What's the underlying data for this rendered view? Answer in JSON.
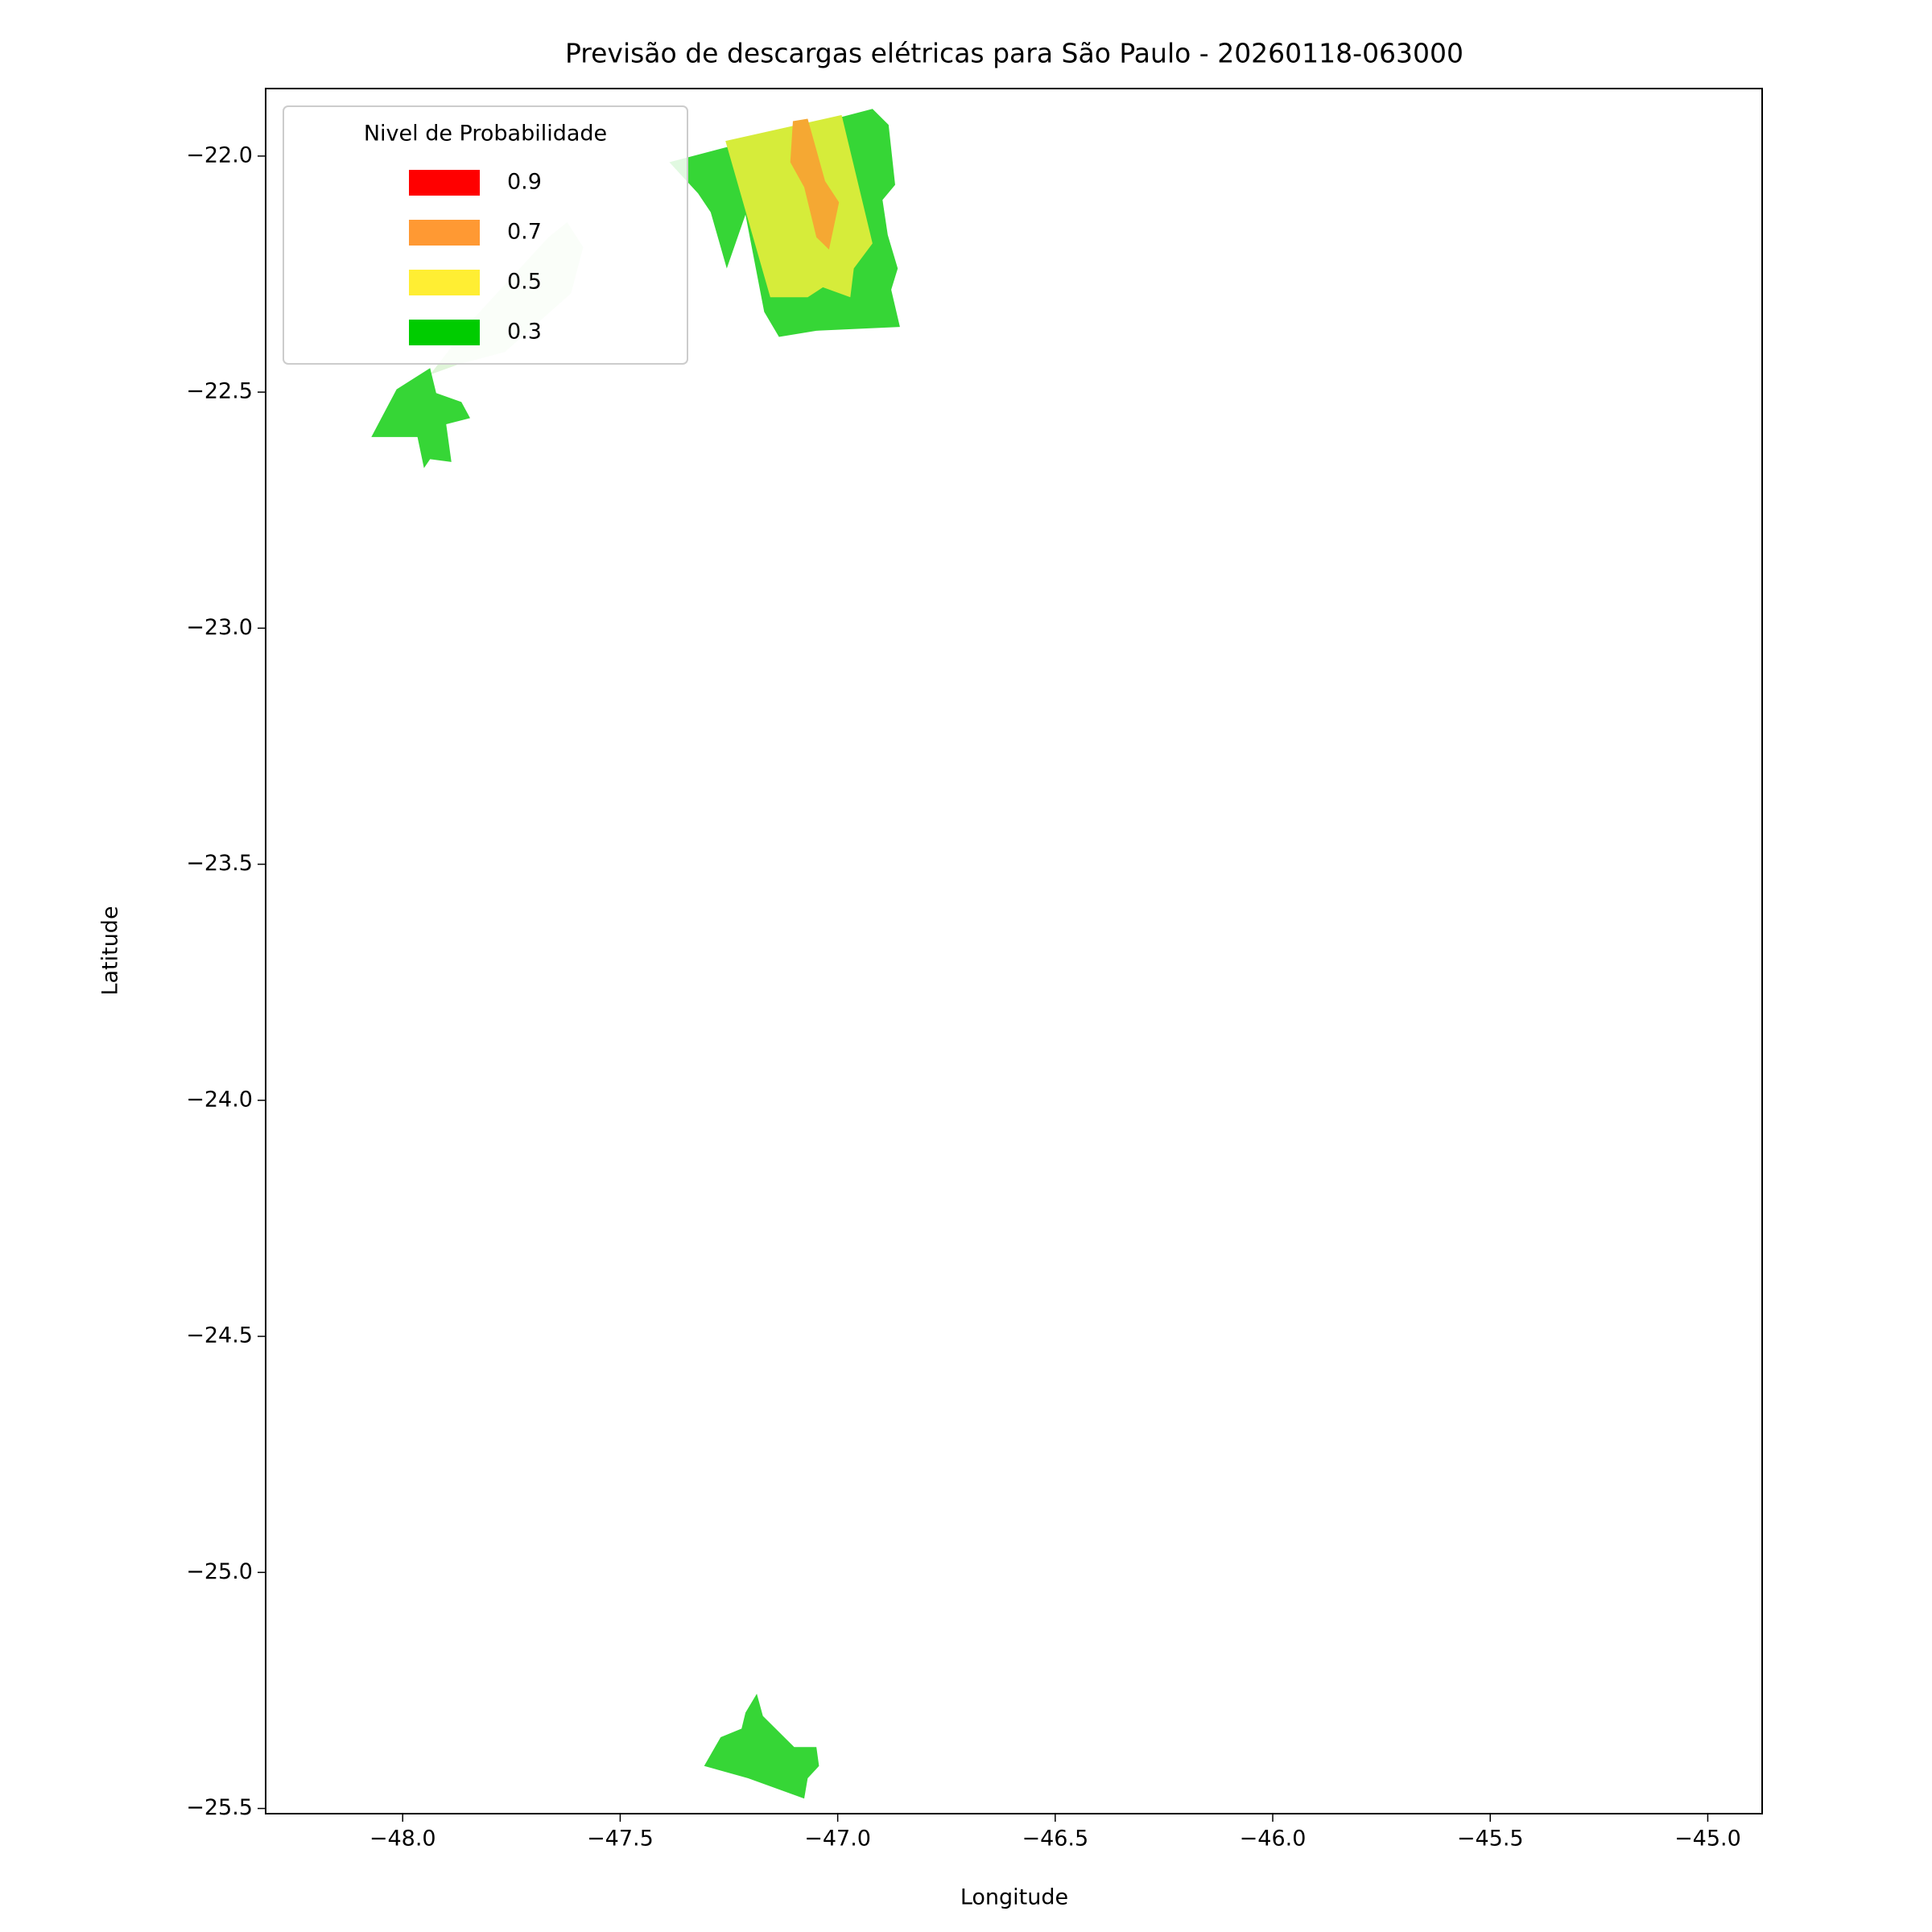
{
  "chart_data": {
    "type": "contour",
    "title": "Previsão de descargas elétricas para São Paulo - 20260118-063000",
    "x_label": "Longitude",
    "y_label": "Latitude",
    "legend_title": "Nivel de Probabilidade",
    "legend_position": "upper left",
    "series": [
      {
        "name": "0.9",
        "color": "#ff0000"
      },
      {
        "name": "0.7",
        "color": "#ff9933"
      },
      {
        "name": "0.5",
        "color": "#ffee33"
      },
      {
        "name": "0.3",
        "color": "#00cc00"
      }
    ],
    "regions": [
      {
        "color": "#dff5d8",
        "x": [
          -47.622,
          -47.585,
          -47.613,
          -47.765,
          -47.871,
          -47.937,
          -47.837,
          -47.665
        ],
        "y": [
          -22.14,
          -22.193,
          -22.291,
          -22.415,
          -22.441,
          -22.463,
          -22.344,
          -22.172
        ]
      },
      {
        "color": "#36d636",
        "x": [
          -47.387,
          -46.92,
          -46.883,
          -46.868,
          -46.897,
          -46.885,
          -46.862,
          -46.877,
          -46.857,
          -47.049,
          -47.135,
          -47.169,
          -47.212,
          -47.255,
          -47.292,
          -47.321
        ],
        "y": [
          -22.013,
          -21.9,
          -21.934,
          -22.061,
          -22.093,
          -22.167,
          -22.238,
          -22.283,
          -22.362,
          -22.37,
          -22.383,
          -22.33,
          -22.124,
          -22.238,
          -22.119,
          -22.079
        ]
      },
      {
        "color": "#d6ec3a",
        "x": [
          -47.258,
          -46.991,
          -46.92,
          -46.963,
          -46.971,
          -47.034,
          -47.069,
          -47.155
        ],
        "y": [
          -21.968,
          -21.913,
          -22.185,
          -22.238,
          -22.299,
          -22.278,
          -22.299,
          -22.299
        ]
      },
      {
        "color": "#f5a833",
        "x": [
          -47.103,
          -47.069,
          -47.029,
          -46.997,
          -47.02,
          -47.049,
          -47.077,
          -47.109
        ],
        "y": [
          -21.926,
          -21.921,
          -22.053,
          -22.098,
          -22.198,
          -22.172,
          -22.066,
          -22.013
        ]
      },
      {
        "color": "#36d636",
        "x": [
          -47.937,
          -47.923,
          -47.865,
          -47.845,
          -47.9,
          -47.888,
          -47.937,
          -47.951,
          -47.966,
          -48.072,
          -48.014
        ],
        "y": [
          -22.449,
          -22.502,
          -22.521,
          -22.555,
          -22.568,
          -22.648,
          -22.642,
          -22.661,
          -22.595,
          -22.595,
          -22.494
        ]
      },
      {
        "color": "#36d636",
        "x": [
          -47.186,
          -47.172,
          -47.1,
          -47.049,
          -47.043,
          -47.069,
          -47.077,
          -47.206,
          -47.307,
          -47.269,
          -47.221,
          -47.212
        ],
        "y": [
          -25.257,
          -25.304,
          -25.37,
          -25.37,
          -25.41,
          -25.436,
          -25.479,
          -25.436,
          -25.41,
          -25.349,
          -25.331,
          -25.297
        ]
      }
    ],
    "xlim": [
      -48.315,
      -44.875
    ],
    "ylim": [
      -25.511,
      -21.857
    ],
    "xticks": [
      {
        "value": -48.0,
        "label": "−48.0"
      },
      {
        "value": -47.5,
        "label": "−47.5"
      },
      {
        "value": -47.0,
        "label": "−47.0"
      },
      {
        "value": -46.5,
        "label": "−46.5"
      },
      {
        "value": -46.0,
        "label": "−46.0"
      },
      {
        "value": -45.5,
        "label": "−45.5"
      },
      {
        "value": -45.0,
        "label": "−45.0"
      }
    ],
    "yticks": [
      {
        "value": -22.0,
        "label": "−22.0"
      },
      {
        "value": -22.5,
        "label": "−22.5"
      },
      {
        "value": -23.0,
        "label": "−23.0"
      },
      {
        "value": -23.5,
        "label": "−23.5"
      },
      {
        "value": -24.0,
        "label": "−24.0"
      },
      {
        "value": -24.5,
        "label": "−24.5"
      },
      {
        "value": -25.0,
        "label": "−25.0"
      },
      {
        "value": -25.5,
        "label": "−25.5"
      }
    ]
  }
}
